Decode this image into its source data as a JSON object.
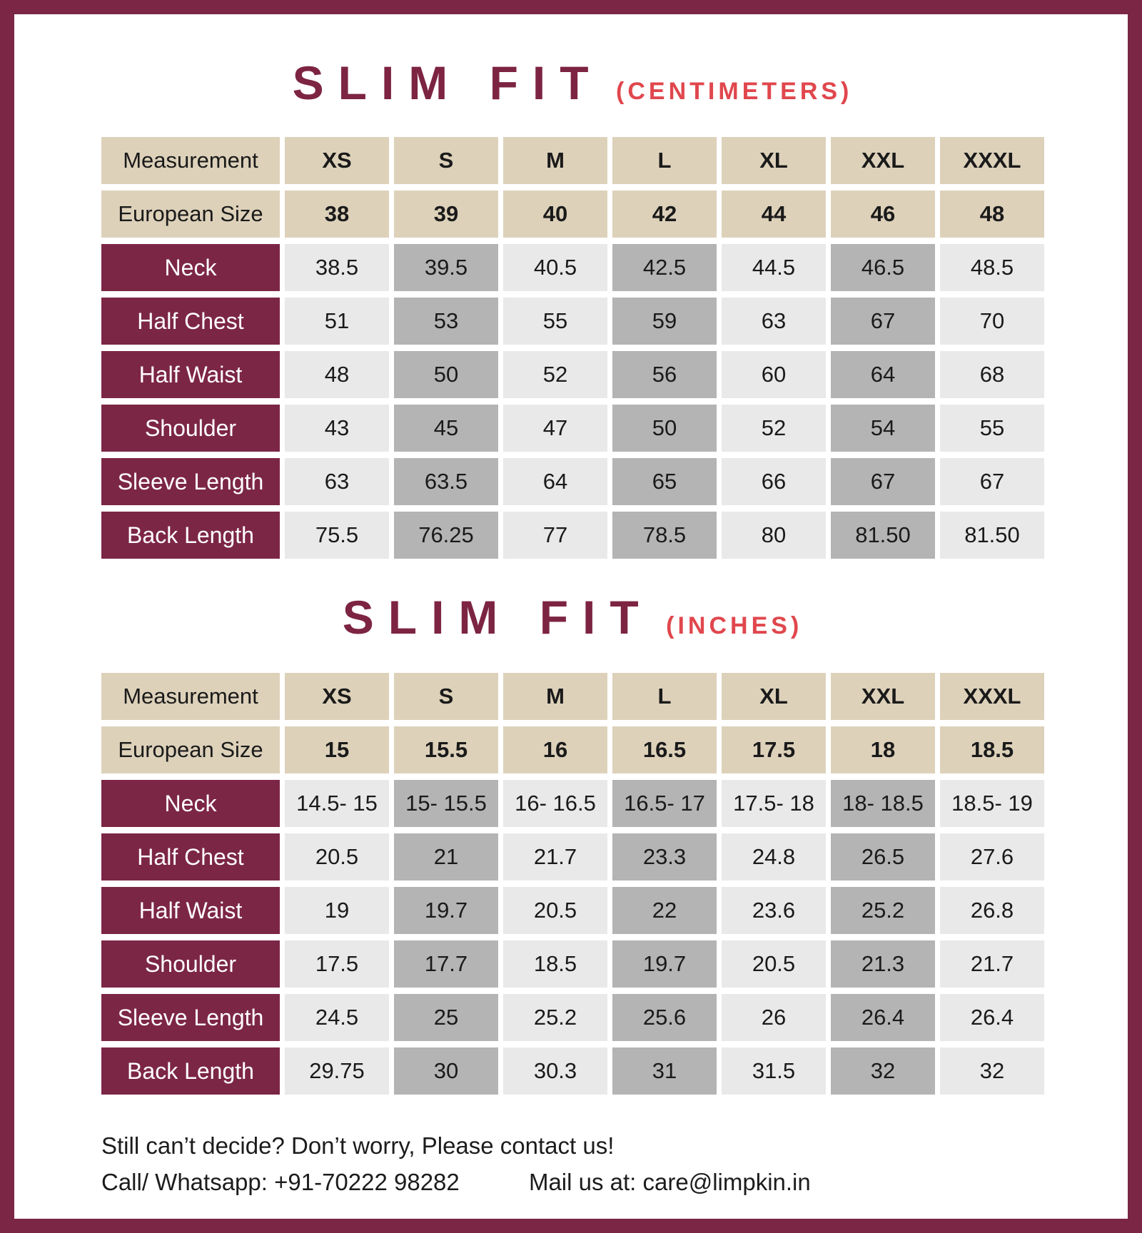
{
  "colors": {
    "frame_maroon": "#7c2646",
    "title_maroon": "#7d2443",
    "unit_red": "#e0474d",
    "header_tan": "#ddd1ba",
    "cell_light_gray": "#e9e9ea",
    "cell_dark_gray": "#b4b4b4",
    "row_label_maroon": "#7c2646",
    "value_text": "#1a1a1a"
  },
  "shading": {
    "dark_columns": [
      1,
      3,
      5
    ]
  },
  "tables": [
    {
      "title": "SLIM FIT",
      "unit_label": "(CENTIMETERS)",
      "header_label": "Measurement",
      "sizes": [
        "XS",
        "S",
        "M",
        "L",
        "XL",
        "XXL",
        "XXXL"
      ],
      "euro_label": "European Size",
      "euro_sizes": [
        "38",
        "39",
        "40",
        "42",
        "44",
        "46",
        "48"
      ],
      "rows": [
        {
          "label": "Neck",
          "values": [
            "38.5",
            "39.5",
            "40.5",
            "42.5",
            "44.5",
            "46.5",
            "48.5"
          ]
        },
        {
          "label": "Half Chest",
          "values": [
            "51",
            "53",
            "55",
            "59",
            "63",
            "67",
            "70"
          ]
        },
        {
          "label": "Half Waist",
          "values": [
            "48",
            "50",
            "52",
            "56",
            "60",
            "64",
            "68"
          ]
        },
        {
          "label": "Shoulder",
          "values": [
            "43",
            "45",
            "47",
            "50",
            "52",
            "54",
            "55"
          ]
        },
        {
          "label": "Sleeve Length",
          "values": [
            "63",
            "63.5",
            "64",
            "65",
            "66",
            "67",
            "67"
          ]
        },
        {
          "label": "Back Length",
          "values": [
            "75.5",
            "76.25",
            "77",
            "78.5",
            "80",
            "81.50",
            "81.50"
          ]
        }
      ]
    },
    {
      "title": "SLIM FIT",
      "unit_label": "(INCHES)",
      "header_label": "Measurement",
      "sizes": [
        "XS",
        "S",
        "M",
        "L",
        "XL",
        "XXL",
        "XXXL"
      ],
      "euro_label": "European Size",
      "euro_sizes": [
        "15",
        "15.5",
        "16",
        "16.5",
        "17.5",
        "18",
        "18.5"
      ],
      "rows": [
        {
          "label": "Neck",
          "values": [
            "14.5- 15",
            "15- 15.5",
            "16- 16.5",
            "16.5- 17",
            "17.5- 18",
            "18- 18.5",
            "18.5- 19"
          ]
        },
        {
          "label": "Half Chest",
          "values": [
            "20.5",
            "21",
            "21.7",
            "23.3",
            "24.8",
            "26.5",
            "27.6"
          ]
        },
        {
          "label": "Half Waist",
          "values": [
            "19",
            "19.7",
            "20.5",
            "22",
            "23.6",
            "25.2",
            "26.8"
          ]
        },
        {
          "label": "Shoulder",
          "values": [
            "17.5",
            "17.7",
            "18.5",
            "19.7",
            "20.5",
            "21.3",
            "21.7"
          ]
        },
        {
          "label": "Sleeve Length",
          "values": [
            "24.5",
            "25",
            "25.2",
            "25.6",
            "26",
            "26.4",
            "26.4"
          ]
        },
        {
          "label": "Back Length",
          "values": [
            "29.75",
            "30",
            "30.3",
            "31",
            "31.5",
            "32",
            "32"
          ]
        }
      ]
    }
  ],
  "footer": {
    "line1": "Still can’t decide? Don’t worry, Please contact us!",
    "line2_call": "Call/ Whatsapp: +91-70222 98282",
    "line2_mail": "Mail us at: care@limpkin.in"
  }
}
